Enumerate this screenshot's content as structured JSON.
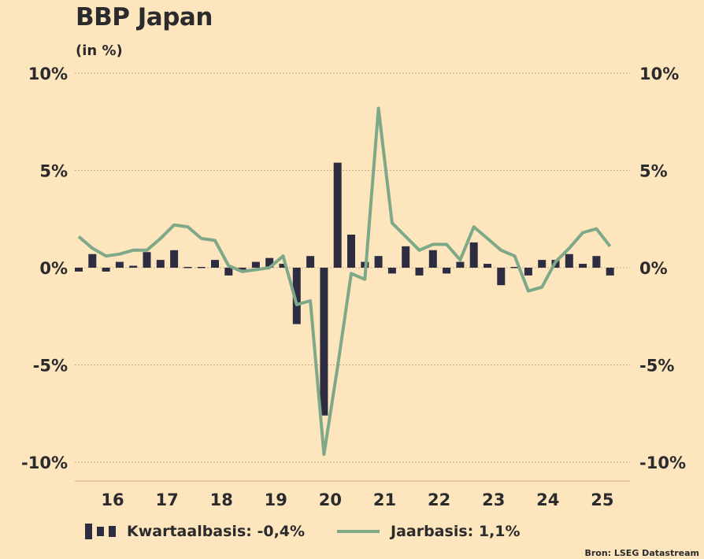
{
  "header": {
    "title": "BBP Japan",
    "subtitle": "(in %)"
  },
  "source": "Bron: LSEG Datastream",
  "colors": {
    "background": "#fde5be",
    "bars": "#2d2c40",
    "line": "#7ea988",
    "text": "#2b2a2c",
    "grid": "#c9a98a"
  },
  "chart_data": {
    "type": "bar+line",
    "title": "BBP Japan",
    "subtitle": "(in %)",
    "xlabel": "",
    "ylabel": "",
    "ylim": [
      -10,
      10
    ],
    "yticks": [
      10,
      5,
      0,
      -5,
      -10
    ],
    "ytick_labels": [
      "10%",
      "5%",
      "0%",
      "-5%",
      "-10%"
    ],
    "xtick_labels": [
      "16",
      "17",
      "18",
      "19",
      "20",
      "21",
      "22",
      "23",
      "24",
      "25"
    ],
    "grid": "horizontal-dotted",
    "axes": "left-and-right",
    "legend_position": "bottom",
    "x_start": "2015 Q2",
    "series": [
      {
        "name": "Kwartaalbasis",
        "type": "bar",
        "legend_label": "Kwartaalbasis: -0,4%",
        "values": [
          -0.2,
          0.7,
          -0.2,
          0.3,
          0.1,
          0.8,
          0.4,
          0.9,
          0.05,
          0.05,
          0.4,
          -0.4,
          -0.1,
          0.3,
          0.5,
          0.2,
          -2.9,
          0.6,
          -7.6,
          5.4,
          1.7,
          0.3,
          0.6,
          -0.3,
          1.1,
          -0.4,
          0.9,
          -0.3,
          0.3,
          1.3,
          0.2,
          -0.9,
          0.0,
          -0.4,
          0.4,
          0.4,
          0.7,
          0.2,
          0.6,
          -0.4
        ]
      },
      {
        "name": "Jaarbasis",
        "type": "line",
        "legend_label": "Jaarbasis: 1,1%",
        "values": [
          1.6,
          1.0,
          0.6,
          0.7,
          0.9,
          0.9,
          1.5,
          2.2,
          2.1,
          1.5,
          1.4,
          0.1,
          -0.2,
          -0.1,
          0.0,
          0.6,
          -1.9,
          -1.7,
          -9.6,
          -5.1,
          -0.3,
          -0.6,
          8.2,
          2.3,
          1.6,
          0.9,
          1.2,
          1.2,
          0.4,
          2.1,
          1.5,
          0.9,
          0.6,
          -1.2,
          -1.0,
          0.3,
          1.0,
          1.8,
          2.0,
          1.1
        ]
      }
    ]
  }
}
